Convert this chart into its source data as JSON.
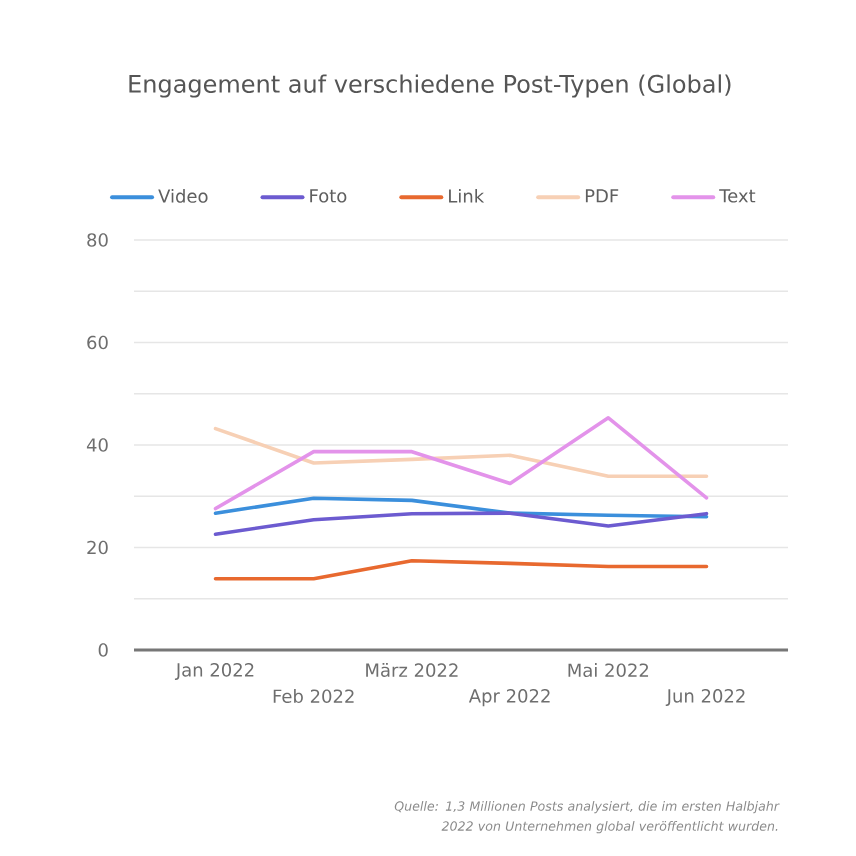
{
  "chart_data": {
    "type": "line",
    "title": "Engagement auf verschiedene Post-Typen (Global)",
    "categories": [
      "Jan 2022",
      "Feb 2022",
      "März 2022",
      "Apr 2022",
      "Mai 2022",
      "Jun 2022"
    ],
    "series": [
      {
        "name": "Video",
        "color": "#3b8fdc",
        "values": [
          26.7,
          29.6,
          29.2,
          26.7,
          26.3,
          26.0
        ]
      },
      {
        "name": "Foto",
        "color": "#6c5bd0",
        "values": [
          22.6,
          25.4,
          26.6,
          26.7,
          24.2,
          26.6
        ]
      },
      {
        "name": "Link",
        "color": "#e8692f",
        "values": [
          13.9,
          13.9,
          17.4,
          16.9,
          16.3,
          16.3
        ]
      },
      {
        "name": "PDF",
        "color": "#f7d0b5",
        "values": [
          43.2,
          36.5,
          37.2,
          38.0,
          33.9,
          33.9
        ]
      },
      {
        "name": "Text",
        "color": "#e393ea",
        "values": [
          27.6,
          38.7,
          38.7,
          32.5,
          45.3,
          29.7
        ]
      }
    ],
    "ylim": [
      0,
      80
    ],
    "yticks": [
      0,
      {
        "value": 10,
        "label": null
      },
      20,
      {
        "value": 30,
        "label": null
      },
      40,
      {
        "value": 50,
        "label": null
      },
      60,
      {
        "value": 70,
        "label": null
      },
      80
    ],
    "grid": "y",
    "legend": "top",
    "annotations": [
      "Quelle: 1,3 Millionen Posts analysiert, die im ersten Halbjahr 2022 von Unternehmen global veröffentlicht wurden."
    ]
  }
}
